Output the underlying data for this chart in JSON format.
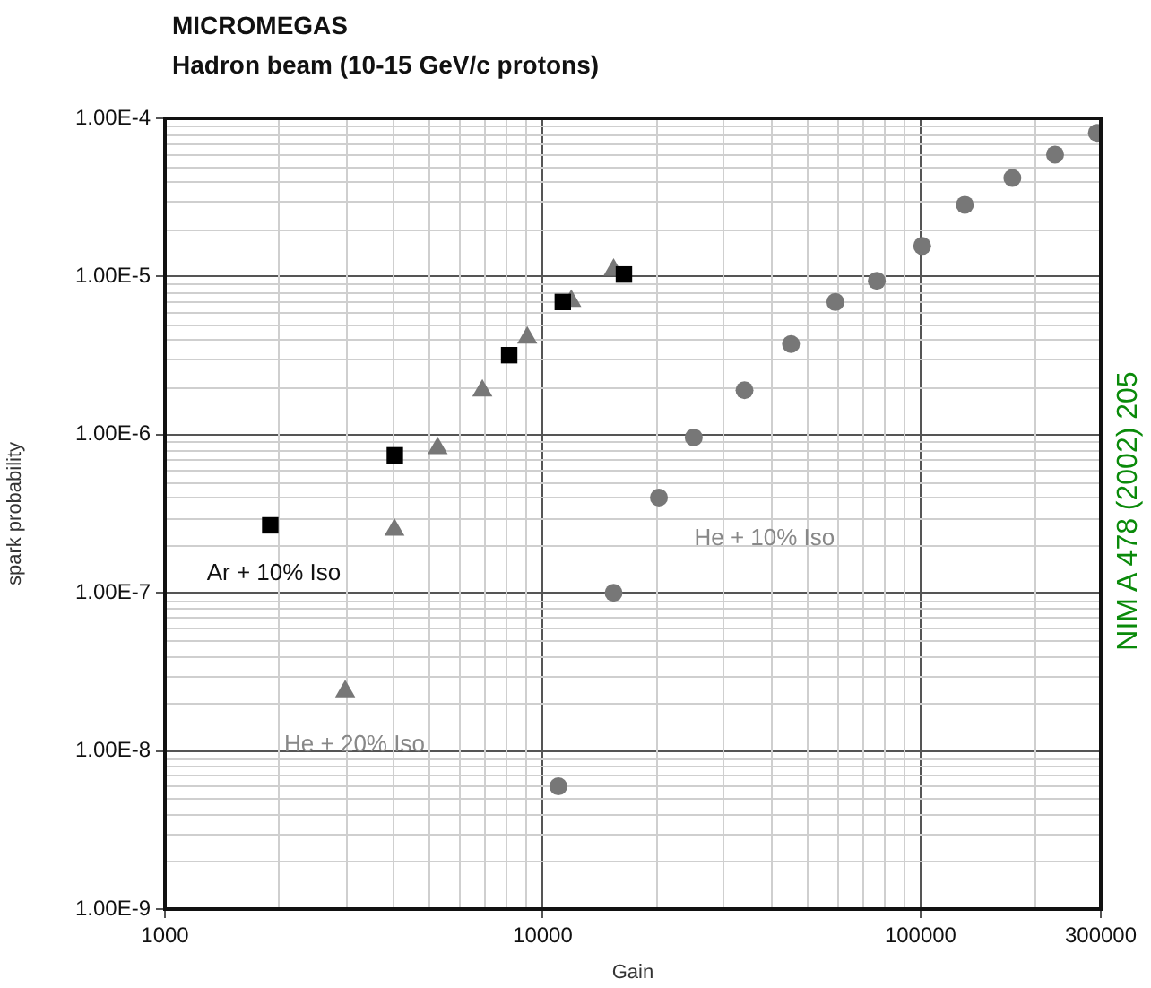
{
  "chart_data": {
    "type": "scatter",
    "title": "MICROMEGAS",
    "subtitle": "Hadron beam (10-15 GeV/c protons)",
    "xlabel": "Gain",
    "ylabel": "spark probability",
    "log": "xy",
    "grid": true,
    "legend": false,
    "xlim": [
      1000,
      300000
    ],
    "xticks": [
      1000,
      10000,
      100000,
      300000
    ],
    "ylim": [
      1e-09,
      0.0001
    ],
    "yticks": [
      {
        "value": 1e-09,
        "label": "1.00E-9"
      },
      {
        "value": 1e-08,
        "label": "1.00E-8"
      },
      {
        "value": 1e-07,
        "label": "1.00E-7"
      },
      {
        "value": 1e-06,
        "label": "1.00E-6"
      },
      {
        "value": 1e-05,
        "label": "1.00E-5"
      },
      {
        "value": 0.0001,
        "label": "1.00E-4"
      }
    ],
    "series": [
      {
        "name": "Ar + 10% Iso",
        "color": "#000000",
        "marker": "square",
        "x": [
          1900,
          4060,
          8150,
          11300,
          16400
        ],
        "values": [
          2.67e-07,
          7.4e-07,
          3.18e-06,
          6.9e-06,
          1.03e-05
        ]
      },
      {
        "name": "He + 20% Iso",
        "color": "#777777",
        "marker": "triangle",
        "x": [
          3000,
          4050,
          5270,
          6920,
          9100,
          11900,
          15400
        ],
        "values": [
          2.38e-08,
          2.5e-07,
          8.2e-07,
          1.9e-06,
          4.1e-06,
          7e-06,
          1.1e-05
        ]
      },
      {
        "name": "He + 10% Iso",
        "color": "#777777",
        "marker": "circle",
        "x": [
          11000,
          15400,
          20300,
          25100,
          34200,
          45400,
          59500,
          76600,
          101000,
          131000,
          175000,
          227000,
          293000
        ],
        "values": [
          5.97e-09,
          1e-07,
          4e-07,
          9.6e-07,
          1.91e-06,
          3.74e-06,
          6.9e-06,
          9.4e-06,
          1.56e-05,
          2.84e-05,
          4.2e-05,
          5.9e-05,
          8.1e-05
        ]
      }
    ],
    "annotations": [
      "NIM A 478 (2002) 205"
    ]
  }
}
